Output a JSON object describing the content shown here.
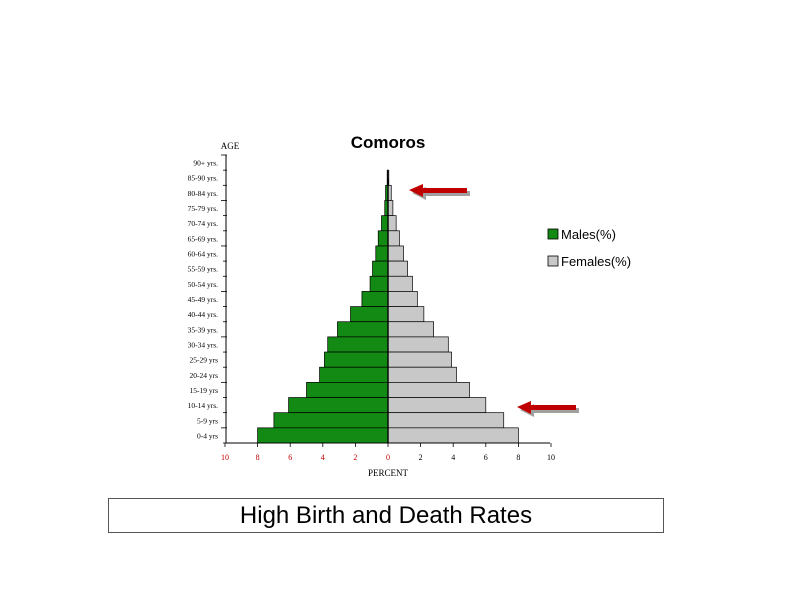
{
  "slide": {
    "caption": "High Birth and Death Rates",
    "arrow_color": "#c00000",
    "arrow_shadow_color": "#a0a0a0"
  },
  "chart_data": {
    "type": "bar",
    "orientation": "population-pyramid",
    "title": "Comoros",
    "ylabel": "AGE",
    "xlabel": "PERCENT",
    "xlim": [
      -10,
      10
    ],
    "x_ticks": [
      "10",
      "8",
      "6",
      "4",
      "2",
      "0",
      "2",
      "4",
      "6",
      "8",
      "10"
    ],
    "x_tick_colors": [
      "#c00000",
      "#c00000",
      "#c00000",
      "#c00000",
      "#c00000",
      "#c00000",
      "#000000",
      "#000000",
      "#000000",
      "#000000",
      "#000000"
    ],
    "categories": [
      "90+ yrs.",
      "85-90 yrs.",
      "80-84 yrs.",
      "75-79 yrs.",
      "70-74 yrs.",
      "65-69 yrs.",
      "60-64 yrs.",
      "55-59 yrs.",
      "50-54 yrs.",
      "45-49 yrs.",
      "40-44 yrs.",
      "35-39 yrs.",
      "30-34 yrs.",
      "25-29 yrs",
      "20-24 yrs",
      "15-19 yrs",
      "10-14 yrs.",
      "5-9 yrs",
      "0-4 yrs"
    ],
    "series": [
      {
        "name": "Males(%)",
        "color": "#138a13",
        "values": [
          0,
          0.05,
          0.15,
          0.2,
          0.4,
          0.6,
          0.75,
          0.95,
          1.1,
          1.6,
          2.3,
          3.1,
          3.7,
          3.9,
          4.2,
          5.0,
          6.1,
          7.0,
          8.0
        ]
      },
      {
        "name": "Females(%)",
        "color": "#c8c8c8",
        "values": [
          0,
          0.05,
          0.2,
          0.3,
          0.5,
          0.7,
          0.95,
          1.2,
          1.5,
          1.8,
          2.2,
          2.8,
          3.7,
          3.9,
          4.2,
          5.0,
          6.0,
          7.1,
          8.0
        ]
      }
    ],
    "legend_position": "right",
    "grid": false
  }
}
